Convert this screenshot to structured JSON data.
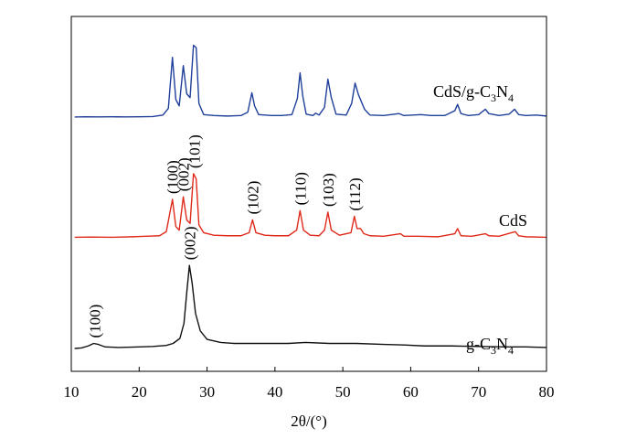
{
  "chart_data": {
    "type": "line",
    "title": "",
    "xlabel": "2θ/(°)",
    "ylabel": "",
    "xlim": [
      10,
      80
    ],
    "xticks": [
      10,
      20,
      30,
      40,
      50,
      60,
      70,
      80
    ],
    "yticks_shown": false,
    "grid": false,
    "series": [
      {
        "name": "CdS/g-C3N4",
        "label_main": "CdS/g-C",
        "label_sub1": "3",
        "label_mid": "N",
        "label_sub2": "4",
        "color": "#1f3f9a",
        "points": [
          [
            10.5,
            0.2
          ],
          [
            12,
            0.25
          ],
          [
            14,
            0.22
          ],
          [
            16,
            0.24
          ],
          [
            18,
            0.23
          ],
          [
            20,
            0.25
          ],
          [
            22,
            0.3
          ],
          [
            23.5,
            0.6
          ],
          [
            24.3,
            2.0
          ],
          [
            24.9,
            12.5
          ],
          [
            25.4,
            3.8
          ],
          [
            25.9,
            2.5
          ],
          [
            26.5,
            10.8
          ],
          [
            27.0,
            5.0
          ],
          [
            27.5,
            4.2
          ],
          [
            28.0,
            15.0
          ],
          [
            28.4,
            14.5
          ],
          [
            28.8,
            3.0
          ],
          [
            29.5,
            0.7
          ],
          [
            31,
            0.5
          ],
          [
            33,
            0.4
          ],
          [
            35,
            0.5
          ],
          [
            36.0,
            1.2
          ],
          [
            36.6,
            5.2
          ],
          [
            37.0,
            2.5
          ],
          [
            37.6,
            0.7
          ],
          [
            39.5,
            0.5
          ],
          [
            41,
            0.5
          ],
          [
            42.5,
            0.7
          ],
          [
            43.3,
            4.0
          ],
          [
            43.7,
            9.3
          ],
          [
            44.1,
            4.5
          ],
          [
            44.6,
            0.8
          ],
          [
            45.6,
            0.5
          ],
          [
            46.0,
            1.0
          ],
          [
            46.5,
            0.6
          ],
          [
            47.3,
            2.2
          ],
          [
            47.8,
            8.0
          ],
          [
            48.3,
            4.2
          ],
          [
            49.0,
            0.8
          ],
          [
            50.5,
            0.6
          ],
          [
            51.3,
            3.0
          ],
          [
            51.8,
            7.2
          ],
          [
            52.3,
            4.8
          ],
          [
            53.2,
            1.8
          ],
          [
            54.0,
            0.6
          ],
          [
            56,
            0.5
          ],
          [
            58.3,
            0.9
          ],
          [
            59,
            0.5
          ],
          [
            61.5,
            0.7
          ],
          [
            63,
            0.5
          ],
          [
            65,
            0.5
          ],
          [
            66.5,
            1.5
          ],
          [
            66.9,
            2.8
          ],
          [
            67.4,
            0.9
          ],
          [
            68.5,
            0.5
          ],
          [
            70,
            0.7
          ],
          [
            71,
            1.8
          ],
          [
            71.5,
            0.9
          ],
          [
            73,
            0.5
          ],
          [
            74.5,
            0.8
          ],
          [
            75.3,
            1.8
          ],
          [
            75.9,
            0.7
          ],
          [
            77,
            0.5
          ],
          [
            78.5,
            0.6
          ],
          [
            80,
            0.4
          ]
        ]
      },
      {
        "name": "CdS",
        "label": "CdS",
        "color": "#e02a1a",
        "points": [
          [
            10.5,
            0.1
          ],
          [
            13,
            0.15
          ],
          [
            16,
            0.1
          ],
          [
            19,
            0.2
          ],
          [
            21,
            0.3
          ],
          [
            23,
            0.4
          ],
          [
            24.0,
            1.2
          ],
          [
            24.9,
            7.5
          ],
          [
            25.4,
            2.2
          ],
          [
            25.9,
            1.5
          ],
          [
            26.5,
            8.0
          ],
          [
            27.0,
            3.5
          ],
          [
            27.5,
            2.8
          ],
          [
            28.0,
            12.5
          ],
          [
            28.4,
            11.5
          ],
          [
            28.8,
            2.5
          ],
          [
            29.5,
            1.0
          ],
          [
            31,
            0.5
          ],
          [
            33,
            0.4
          ],
          [
            35,
            0.4
          ],
          [
            36.2,
            1.0
          ],
          [
            36.7,
            3.5
          ],
          [
            37.2,
            1.0
          ],
          [
            38.5,
            0.5
          ],
          [
            40,
            0.4
          ],
          [
            42,
            0.4
          ],
          [
            43.2,
            1.5
          ],
          [
            43.7,
            5.3
          ],
          [
            44.2,
            1.5
          ],
          [
            45.2,
            0.5
          ],
          [
            46.5,
            0.4
          ],
          [
            47.3,
            1.5
          ],
          [
            47.8,
            5.0
          ],
          [
            48.3,
            1.5
          ],
          [
            49.5,
            0.5
          ],
          [
            51.2,
            1.0
          ],
          [
            51.7,
            4.2
          ],
          [
            52.1,
            1.8
          ],
          [
            52.6,
            1.8
          ],
          [
            53.1,
            0.8
          ],
          [
            54,
            0.4
          ],
          [
            56,
            0.3
          ],
          [
            58.5,
            0.8
          ],
          [
            59.0,
            0.3
          ],
          [
            61,
            0.3
          ],
          [
            64,
            0.2
          ],
          [
            66.5,
            0.8
          ],
          [
            66.9,
            1.8
          ],
          [
            67.4,
            0.4
          ],
          [
            69,
            0.3
          ],
          [
            71,
            0.8
          ],
          [
            71.5,
            0.4
          ],
          [
            73,
            0.3
          ],
          [
            75.4,
            1.2
          ],
          [
            75.9,
            0.4
          ],
          [
            77,
            0.2
          ],
          [
            80,
            0.1
          ]
        ]
      },
      {
        "name": "g-C3N4",
        "label_main": "g-C",
        "label_sub1": "3",
        "label_mid": "N",
        "label_sub2": "4",
        "color": "#111111",
        "points": [
          [
            10.5,
            0.0
          ],
          [
            11.5,
            0.1
          ],
          [
            12.5,
            0.5
          ],
          [
            13.3,
            1.0
          ],
          [
            14.0,
            0.8
          ],
          [
            15.0,
            0.3
          ],
          [
            17,
            0.2
          ],
          [
            20,
            0.3
          ],
          [
            22,
            0.4
          ],
          [
            24,
            0.6
          ],
          [
            25,
            1.0
          ],
          [
            26,
            2.0
          ],
          [
            26.6,
            5.0
          ],
          [
            27.0,
            11.0
          ],
          [
            27.4,
            16.5
          ],
          [
            27.8,
            13.0
          ],
          [
            28.3,
            7.0
          ],
          [
            29.0,
            3.5
          ],
          [
            30,
            1.8
          ],
          [
            32,
            1.2
          ],
          [
            34,
            1.0
          ],
          [
            38,
            1.0
          ],
          [
            42,
            1.0
          ],
          [
            44.5,
            1.2
          ],
          [
            48,
            1.0
          ],
          [
            52,
            1.0
          ],
          [
            56,
            0.8
          ],
          [
            59,
            0.7
          ],
          [
            62,
            0.5
          ],
          [
            66,
            0.5
          ],
          [
            70,
            0.4
          ],
          [
            74,
            0.3
          ],
          [
            77,
            0.3
          ],
          [
            80,
            0.2
          ]
        ]
      }
    ],
    "peak_labels": [
      {
        "text": "(100)",
        "x": 13.4,
        "series": "g-C3N4"
      },
      {
        "text": "(002)",
        "x": 27.4,
        "series": "g-C3N4"
      },
      {
        "text": "(100)",
        "x": 24.9,
        "series": "CdS"
      },
      {
        "text": "(002)",
        "x": 26.5,
        "series": "CdS"
      },
      {
        "text": "(101)",
        "x": 28.1,
        "series": "CdS"
      },
      {
        "text": "(102)",
        "x": 36.7,
        "series": "CdS"
      },
      {
        "text": "(110)",
        "x": 43.7,
        "series": "CdS"
      },
      {
        "text": "(103)",
        "x": 47.8,
        "series": "CdS"
      },
      {
        "text": "(112)",
        "x": 51.7,
        "series": "CdS"
      }
    ]
  }
}
